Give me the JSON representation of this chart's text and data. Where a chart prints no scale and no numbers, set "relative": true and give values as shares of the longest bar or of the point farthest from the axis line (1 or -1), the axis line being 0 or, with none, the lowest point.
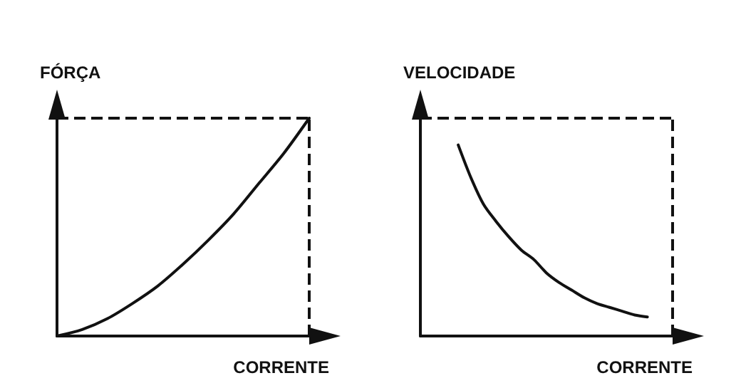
{
  "chart_data": [
    {
      "type": "line",
      "relative": true,
      "xlabel": "CORRENTE",
      "ylabel": "FÓRÇA",
      "categories": [
        null,
        null,
        null,
        null,
        null,
        null,
        null,
        null,
        null,
        null,
        null
      ],
      "series": [
        {
          "color": "#111111",
          "values": [
            0,
            0.03,
            0.08,
            0.15,
            0.23,
            0.33,
            0.44,
            0.56,
            0.7,
            0.84,
            1.0
          ]
        }
      ],
      "ref_lines": [
        {
          "axis": "y",
          "value": 1.0,
          "line_style": "dashed",
          "color": "#111111"
        }
      ],
      "grid": false,
      "marker": "none",
      "line_style": "solid"
    },
    {
      "type": "line",
      "relative": true,
      "xlabel": "CORRENTE",
      "ylabel": "VELOCIDADE",
      "categories": [
        null,
        null,
        null,
        null,
        null,
        null,
        null,
        null,
        null,
        null,
        null,
        null,
        null,
        null,
        null,
        null,
        null,
        null,
        null,
        null,
        null
      ],
      "series": [
        {
          "color": "#111111",
          "values": [
            null,
            null,
            null,
            1.0,
            0.83,
            0.69,
            0.6,
            0.52,
            0.45,
            0.4,
            0.33,
            0.28,
            0.24,
            0.2,
            0.17,
            0.15,
            0.13,
            0.11,
            0.1,
            null,
            null
          ]
        }
      ],
      "ref_lines": [
        {
          "axis": "y",
          "value": 1.14,
          "line_style": "dashed",
          "color": "#111111"
        }
      ],
      "grid": false,
      "marker": "none",
      "line_style": "solid"
    }
  ]
}
